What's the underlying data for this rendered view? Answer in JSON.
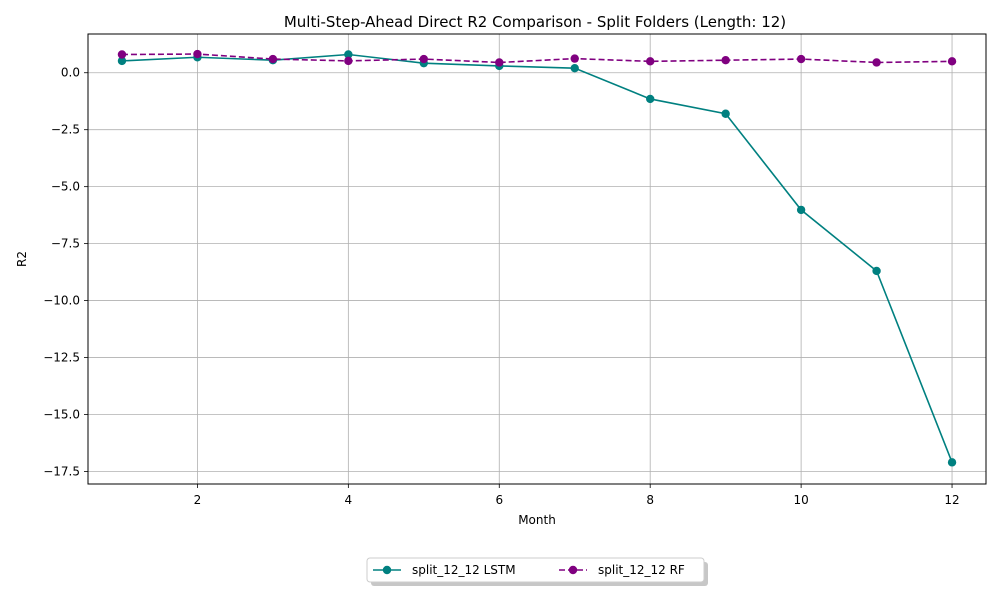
{
  "chart_data": {
    "type": "line",
    "title": "Multi-Step-Ahead Direct R2 Comparison - Split Folders (Length: 12)",
    "xlabel": "Month",
    "ylabel": "R2",
    "xlim": [
      0.55,
      12.45
    ],
    "ylim": [
      -18.05,
      1.7
    ],
    "xticks": [
      2,
      4,
      6,
      8,
      10,
      12
    ],
    "xtick_labels": [
      "2",
      "4",
      "6",
      "8",
      "10",
      "12"
    ],
    "yticks": [
      0.0,
      -2.5,
      -5.0,
      -7.5,
      -10.0,
      -12.5,
      -15.0,
      -17.5
    ],
    "ytick_labels": [
      "0.0",
      "−2.5",
      "−5.0",
      "−7.5",
      "−10.0",
      "−12.5",
      "−15.0",
      "−17.5"
    ],
    "grid": true,
    "legend_position": "bottom-center",
    "x": [
      1,
      2,
      3,
      4,
      5,
      6,
      7,
      8,
      9,
      10,
      11,
      12
    ],
    "series": [
      {
        "name": "split_12_12 LSTM",
        "color": "#008080",
        "style": "solid",
        "marker": "circle",
        "values": [
          0.52,
          0.68,
          0.55,
          0.8,
          0.42,
          0.3,
          0.2,
          -1.15,
          -1.8,
          -6.02,
          -8.7,
          -17.1
        ]
      },
      {
        "name": "split_12_12 RF",
        "color": "#800080",
        "style": "dashed",
        "marker": "circle",
        "values": [
          0.8,
          0.82,
          0.6,
          0.52,
          0.6,
          0.45,
          0.62,
          0.5,
          0.55,
          0.6,
          0.45,
          0.5
        ]
      }
    ]
  }
}
